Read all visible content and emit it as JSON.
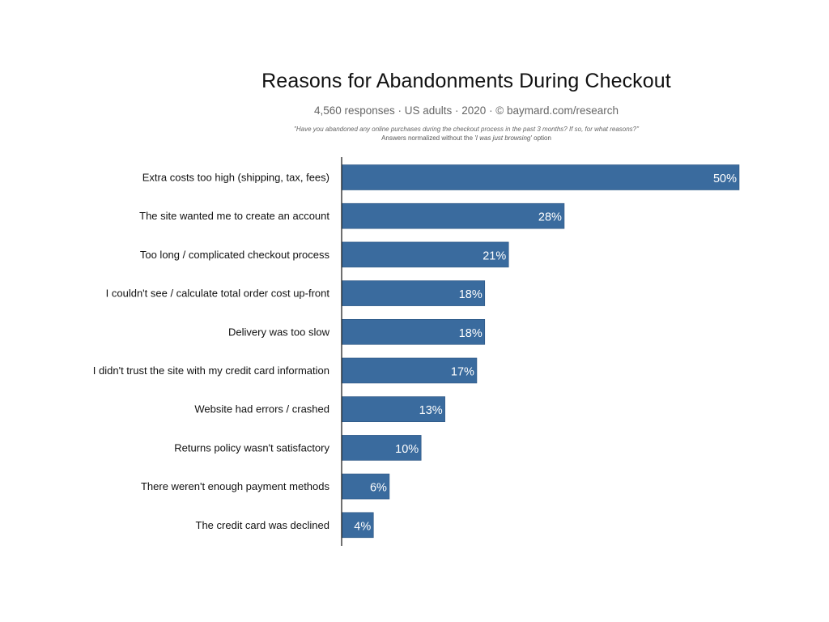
{
  "chart_data": {
    "type": "bar",
    "orientation": "horizontal",
    "title": "Reasons for Abandonments During Checkout",
    "subtitle": "4,560 responses  ·  US adults  ·  2020  ·  ©  baymard.com/research",
    "question": "\"Have you abandoned any online purchases during the checkout process in the past 3 months? If so, for what reasons?\"",
    "note_prefix": "Answers normalized without the ",
    "note_emphasis": "'I was just browsing'",
    "note_suffix": " option",
    "categories": [
      "Extra costs too high (shipping, tax, fees)",
      "The site wanted me to create an account",
      "Too long / complicated checkout process",
      "I couldn't see / calculate total order cost up-front",
      "Delivery was too slow",
      "I didn't trust the site with my credit card information",
      "Website had errors / crashed",
      "Returns policy wasn't satisfactory",
      "There weren't enough payment methods",
      "The credit card was declined"
    ],
    "values": [
      50,
      28,
      21,
      18,
      18,
      17,
      13,
      10,
      6,
      4
    ],
    "value_labels": [
      "50%",
      "28%",
      "21%",
      "18%",
      "18%",
      "17%",
      "13%",
      "10%",
      "6%",
      "4%"
    ],
    "xlim": [
      0,
      50
    ],
    "grid": false,
    "bar_color": "#3a6b9e"
  }
}
